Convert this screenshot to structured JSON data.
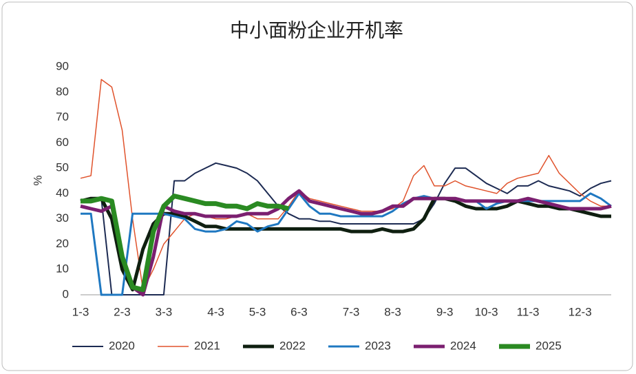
{
  "chart_data": {
    "type": "line",
    "title": "中小面粉企业开机率",
    "y_label": "%",
    "categories": [
      "1-3",
      null,
      null,
      null,
      "2-3",
      null,
      null,
      null,
      "3-3",
      null,
      null,
      null,
      null,
      "4-3",
      null,
      null,
      null,
      "5-3",
      null,
      null,
      null,
      "6-3",
      null,
      null,
      null,
      null,
      "7-3",
      null,
      null,
      null,
      "8-3",
      null,
      null,
      null,
      null,
      "9-3",
      null,
      null,
      null,
      "10-3",
      null,
      null,
      null,
      "11-3",
      null,
      null,
      null,
      null,
      "12-3",
      null,
      null,
      null
    ],
    "ylim": [
      0,
      90
    ],
    "yticks": [
      0,
      10,
      20,
      30,
      40,
      50,
      60,
      70,
      80,
      90
    ],
    "series": [
      {
        "name": "2020",
        "color": "#1c2a52",
        "width": 2,
        "values": [
          37,
          38,
          38,
          0,
          0,
          0,
          0,
          0,
          0,
          45,
          45,
          48,
          50,
          52,
          51,
          50,
          48,
          45,
          40,
          35,
          32,
          30,
          30,
          29,
          29,
          28,
          28,
          28,
          28,
          28,
          28,
          28,
          28,
          30,
          36,
          44,
          50,
          50,
          47,
          44,
          42,
          40,
          43,
          43,
          45,
          43,
          42,
          41,
          39,
          42,
          44,
          45
        ]
      },
      {
        "name": "2021",
        "color": "#e0522b",
        "width": 1.5,
        "values": [
          46,
          47,
          85,
          82,
          65,
          30,
          2,
          10,
          20,
          25,
          30,
          32,
          31,
          30,
          30,
          31,
          32,
          30,
          30,
          30,
          35,
          41,
          38,
          37,
          36,
          35,
          34,
          33,
          33,
          33,
          34,
          37,
          47,
          51,
          43,
          43,
          45,
          43,
          42,
          41,
          40,
          44,
          46,
          47,
          48,
          55,
          48,
          44,
          40,
          37,
          35,
          35
        ]
      },
      {
        "name": "2022",
        "color": "#0f1f10",
        "width": 5,
        "values": [
          37,
          38,
          38,
          30,
          10,
          2,
          18,
          28,
          32,
          32,
          31,
          29,
          27,
          27,
          26,
          26,
          26,
          26,
          26,
          26,
          26,
          26,
          26,
          26,
          26,
          26,
          25,
          25,
          25,
          26,
          25,
          25,
          26,
          30,
          38,
          38,
          37,
          35,
          34,
          34,
          34,
          35,
          37,
          36,
          35,
          35,
          34,
          34,
          33,
          32,
          31,
          31
        ]
      },
      {
        "name": "2023",
        "color": "#1f78c1",
        "width": 3,
        "values": [
          32,
          32,
          0,
          0,
          0,
          32,
          32,
          32,
          32,
          31,
          30,
          26,
          25,
          25,
          26,
          29,
          28,
          25,
          27,
          28,
          34,
          40,
          35,
          32,
          32,
          31,
          31,
          31,
          31,
          31,
          33,
          36,
          38,
          39,
          38,
          38,
          38,
          37,
          37,
          34,
          36,
          37,
          37,
          37,
          37,
          37,
          37,
          37,
          37,
          40,
          38,
          35
        ]
      },
      {
        "name": "2024",
        "color": "#7b1f70",
        "width": 5,
        "values": [
          35,
          34,
          33,
          35,
          15,
          3,
          0,
          15,
          35,
          33,
          32,
          32,
          31,
          31,
          31,
          31,
          32,
          32,
          32,
          34,
          38,
          41,
          37,
          36,
          35,
          34,
          33,
          32,
          32,
          33,
          35,
          35,
          38,
          38,
          38,
          38,
          38,
          37,
          37,
          37,
          37,
          37,
          37,
          38,
          37,
          36,
          35,
          34,
          34,
          34,
          34,
          35
        ]
      },
      {
        "name": "2025",
        "color": "#2a8a22",
        "width": 7,
        "values": [
          37,
          37,
          38,
          37,
          15,
          3,
          2,
          25,
          35,
          39,
          38,
          37,
          36,
          36,
          35,
          35,
          34,
          36,
          35,
          35,
          34,
          null,
          null,
          null,
          null,
          null,
          null,
          null,
          null,
          null,
          null,
          null,
          null,
          null,
          null,
          null,
          null,
          null,
          null,
          null,
          null,
          null,
          null,
          null,
          null,
          null,
          null,
          null,
          null,
          null,
          null,
          null
        ]
      }
    ]
  }
}
